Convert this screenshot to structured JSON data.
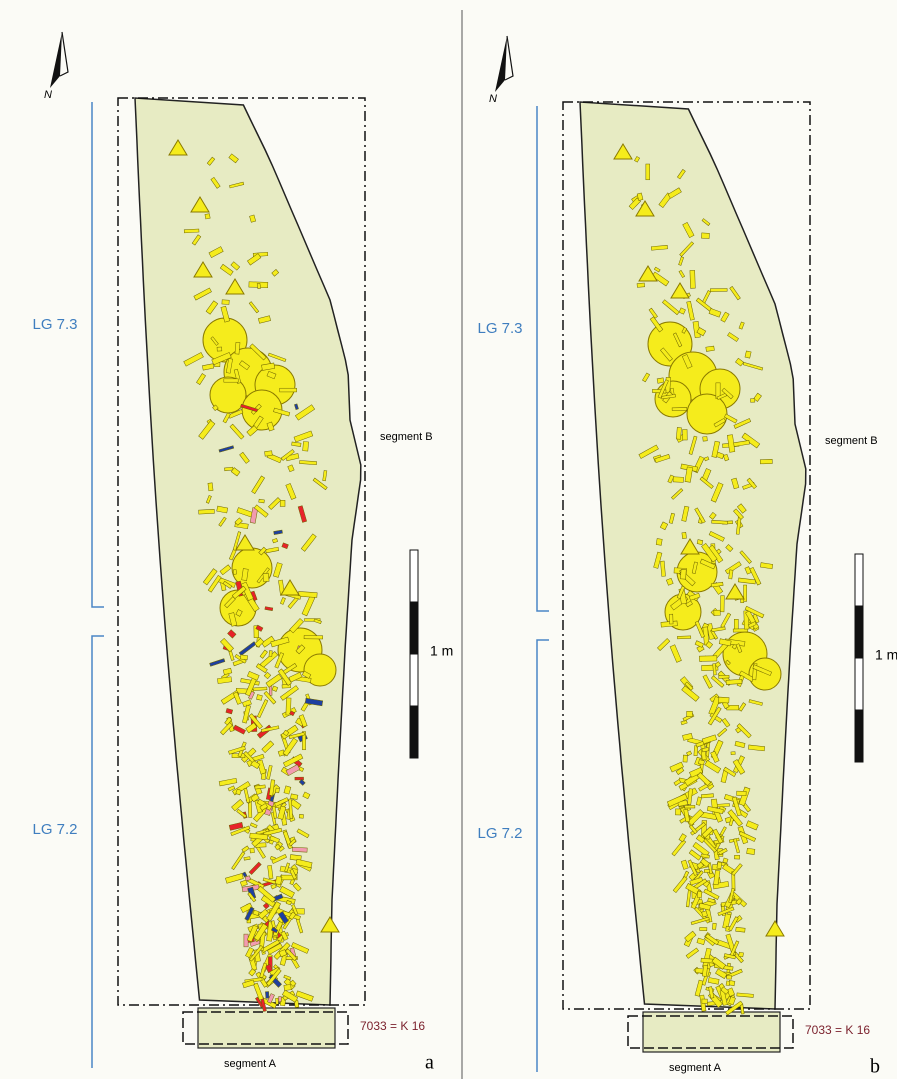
{
  "panels": [
    {
      "north": "N",
      "phases": [
        "LG 7.3",
        "LG 7.2"
      ],
      "segment_upper": "segment B",
      "scale": "1 m",
      "context": "7033 = K 16",
      "segment_lower": "segment A",
      "panel_label": "a"
    },
    {
      "north": "N",
      "phases": [
        "LG 7.3",
        "LG 7.2"
      ],
      "segment_upper": "segment B",
      "scale": "1 m",
      "context": "7033 = K 16",
      "segment_lower": "segment A",
      "panel_label": "b"
    }
  ]
}
